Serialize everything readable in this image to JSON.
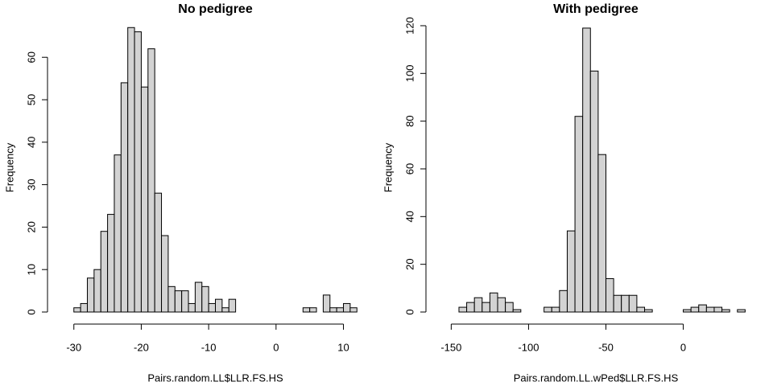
{
  "chart_data": [
    {
      "type": "histogram",
      "title": "No pedigree",
      "x_label": "Pairs.random.LL$LLR.FS.HS",
      "y_label": "Frequency",
      "bins": [
        -30,
        -29,
        -28,
        -27,
        -26,
        -25,
        -24,
        -23,
        -22,
        -21,
        -20,
        -19,
        -18,
        -17,
        -16,
        -15,
        -14,
        -13,
        -12,
        -11,
        -10,
        -9,
        -8,
        -7,
        -6,
        -5,
        -4,
        -3,
        -2,
        -1,
        0,
        1,
        2,
        3,
        4,
        5,
        6,
        7,
        8,
        9,
        10,
        11,
        12
      ],
      "values": [
        1,
        2,
        8,
        10,
        19,
        23,
        37,
        54,
        67,
        66,
        53,
        62,
        28,
        18,
        6,
        5,
        5,
        2,
        7,
        6,
        2,
        3,
        1,
        3,
        0,
        0,
        0,
        0,
        0,
        0,
        0,
        0,
        0,
        0,
        1,
        1,
        0,
        4,
        1,
        1,
        2,
        1
      ],
      "color": "#d3d3d3",
      "xlim": [
        -32,
        14
      ],
      "xticks": [
        -30,
        -20,
        -10,
        0,
        10
      ],
      "ylim": [
        0,
        68
      ],
      "yticks": [
        0,
        10,
        20,
        30,
        40,
        50,
        60
      ]
    },
    {
      "type": "histogram",
      "title": "With pedigree",
      "x_label": "Pairs.random.LL.wPed$LLR.FS.HS",
      "y_label": "Frequency",
      "bins": [
        -145,
        -140,
        -135,
        -130,
        -125,
        -120,
        -115,
        -110,
        -105,
        -100,
        -95,
        -90,
        -85,
        -80,
        -75,
        -70,
        -65,
        -60,
        -55,
        -50,
        -45,
        -40,
        -35,
        -30,
        -25,
        -20,
        -15,
        -10,
        -5,
        0,
        5,
        10,
        15,
        20,
        25,
        30,
        35,
        40
      ],
      "values": [
        2,
        4,
        6,
        4,
        8,
        6,
        4,
        1,
        0,
        0,
        0,
        2,
        2,
        9,
        34,
        82,
        119,
        101,
        66,
        14,
        7,
        7,
        7,
        2,
        1,
        0,
        0,
        0,
        0,
        1,
        2,
        3,
        2,
        2,
        1,
        0,
        1
      ],
      "color": "#d3d3d3",
      "xlim": [
        -158,
        45
      ],
      "xticks": [
        -150,
        -100,
        -50,
        0
      ],
      "ylim": [
        0,
        121
      ],
      "yticks": [
        0,
        20,
        40,
        60,
        80,
        100,
        120
      ]
    }
  ]
}
